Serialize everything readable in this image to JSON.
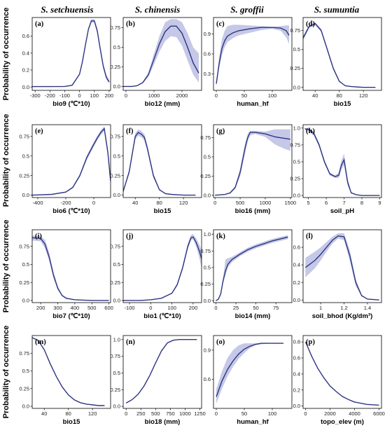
{
  "column_titles": [
    "S. setchuensis",
    "S. chinensis",
    "S. groffii",
    "S. sumuntia"
  ],
  "row_ylabel": "Probability of occurrence",
  "colors": {
    "line": "#2d3582",
    "band": "#c5c8e6"
  },
  "chart_data": [
    {
      "type": "line",
      "label": "(a)",
      "xlabel": "bio9 (℃*10)",
      "xlim": [
        -320,
        210
      ],
      "ylim": [
        -0.04,
        0.82
      ],
      "xticks": [
        -300,
        -200,
        -100,
        0,
        100,
        200
      ],
      "yticks": [
        0.0,
        0.2,
        0.4,
        0.6
      ],
      "x": [
        -320,
        -200,
        -100,
        -50,
        0,
        20,
        40,
        60,
        80,
        100,
        120,
        140,
        160,
        180,
        200
      ],
      "y": [
        0.005,
        0.005,
        0.006,
        0.02,
        0.15,
        0.3,
        0.5,
        0.68,
        0.78,
        0.78,
        0.66,
        0.45,
        0.25,
        0.12,
        0.06
      ],
      "lower": [
        0.005,
        0.005,
        0.006,
        0.02,
        0.14,
        0.28,
        0.48,
        0.66,
        0.76,
        0.76,
        0.63,
        0.42,
        0.22,
        0.09,
        0.04
      ],
      "upper": [
        0.005,
        0.005,
        0.006,
        0.02,
        0.16,
        0.32,
        0.52,
        0.7,
        0.8,
        0.8,
        0.69,
        0.48,
        0.28,
        0.15,
        0.08
      ]
    },
    {
      "type": "line",
      "label": "(e)",
      "xlabel": "bio6 (℃*10)",
      "xlim": [
        -440,
        120
      ],
      "ylim": [
        -0.03,
        0.9
      ],
      "xticks": [
        -400,
        -200,
        0
      ],
      "yticks": [
        0.0,
        0.25,
        0.5,
        0.75
      ],
      "x": [
        -440,
        -300,
        -200,
        -150,
        -100,
        -50,
        0,
        25,
        50,
        75,
        100,
        120
      ],
      "y": [
        0.0,
        0.01,
        0.04,
        0.1,
        0.25,
        0.48,
        0.65,
        0.73,
        0.8,
        0.85,
        0.55,
        0.18
      ],
      "lower": [
        0.0,
        0.01,
        0.035,
        0.09,
        0.23,
        0.45,
        0.62,
        0.7,
        0.77,
        0.82,
        0.5,
        0.15
      ],
      "upper": [
        0.0,
        0.01,
        0.045,
        0.11,
        0.27,
        0.51,
        0.68,
        0.76,
        0.83,
        0.88,
        0.6,
        0.21
      ]
    },
    {
      "type": "line",
      "label": "(i)",
      "xlabel": "bio7 (℃*10)",
      "xlim": [
        150,
        610
      ],
      "ylim": [
        -0.03,
        0.98
      ],
      "xticks": [
        200,
        300,
        400,
        500,
        600
      ],
      "yticks": [
        0.0,
        0.25,
        0.5,
        0.75
      ],
      "x": [
        150,
        200,
        225,
        250,
        275,
        300,
        325,
        350,
        400,
        500,
        600
      ],
      "y": [
        0.87,
        0.86,
        0.78,
        0.6,
        0.35,
        0.17,
        0.07,
        0.03,
        0.01,
        0.0,
        0.0
      ],
      "lower": [
        0.83,
        0.82,
        0.72,
        0.55,
        0.31,
        0.15,
        0.06,
        0.02,
        0.01,
        0.0,
        0.0
      ],
      "upper": [
        0.9,
        0.89,
        0.84,
        0.66,
        0.4,
        0.2,
        0.08,
        0.04,
        0.01,
        0.0,
        0.0
      ]
    },
    {
      "type": "line",
      "label": "(m)",
      "xlabel": "bio15",
      "xlim": [
        20,
        150
      ],
      "ylim": [
        -0.03,
        1.0
      ],
      "xticks": [
        40,
        80,
        120
      ],
      "yticks": [
        0.0,
        0.25,
        0.5,
        0.75
      ],
      "x": [
        20,
        30,
        40,
        50,
        60,
        70,
        80,
        90,
        100,
        110,
        120,
        130,
        140
      ],
      "y": [
        0.97,
        0.93,
        0.8,
        0.6,
        0.42,
        0.27,
        0.16,
        0.09,
        0.05,
        0.03,
        0.02,
        0.01,
        0.01
      ],
      "lower": [
        0.97,
        0.93,
        0.8,
        0.6,
        0.42,
        0.27,
        0.16,
        0.09,
        0.05,
        0.03,
        0.02,
        0.01,
        0.01
      ],
      "upper": [
        0.97,
        0.93,
        0.8,
        0.6,
        0.42,
        0.27,
        0.16,
        0.09,
        0.05,
        0.03,
        0.02,
        0.01,
        0.01
      ]
    },
    {
      "type": "line",
      "label": "(b)",
      "xlabel": "bio12 (mm)",
      "xlim": [
        -100,
        2700
      ],
      "ylim": [
        -0.05,
        0.88
      ],
      "xticks": [
        0,
        1000,
        2000
      ],
      "yticks": [
        0.0,
        0.25,
        0.5,
        0.75
      ],
      "x": [
        -100,
        200,
        400,
        600,
        800,
        1000,
        1200,
        1400,
        1600,
        1800,
        2000,
        2200,
        2400,
        2600
      ],
      "y": [
        0.0,
        0.0,
        0.01,
        0.05,
        0.15,
        0.35,
        0.55,
        0.7,
        0.77,
        0.77,
        0.68,
        0.5,
        0.3,
        0.17
      ],
      "lower": [
        0.0,
        0.0,
        0.01,
        0.04,
        0.12,
        0.28,
        0.45,
        0.58,
        0.64,
        0.63,
        0.52,
        0.33,
        0.15,
        0.05
      ],
      "upper": [
        0.0,
        0.0,
        0.01,
        0.06,
        0.18,
        0.42,
        0.65,
        0.82,
        0.86,
        0.86,
        0.82,
        0.68,
        0.5,
        0.42
      ]
    },
    {
      "type": "line",
      "label": "(f)",
      "xlabel": "bio15",
      "xlim": [
        20,
        150
      ],
      "ylim": [
        -0.03,
        0.9
      ],
      "xticks": [
        40,
        80,
        120
      ],
      "yticks": [
        0.0,
        0.25,
        0.5,
        0.75
      ],
      "x": [
        20,
        30,
        40,
        45,
        50,
        55,
        60,
        70,
        80,
        90,
        100,
        120,
        140
      ],
      "y": [
        0.05,
        0.3,
        0.75,
        0.8,
        0.78,
        0.74,
        0.6,
        0.25,
        0.07,
        0.02,
        0.01,
        0.0,
        0.0
      ],
      "lower": [
        0.04,
        0.27,
        0.71,
        0.76,
        0.74,
        0.7,
        0.56,
        0.22,
        0.06,
        0.02,
        0.01,
        0.0,
        0.0
      ],
      "upper": [
        0.06,
        0.33,
        0.79,
        0.84,
        0.82,
        0.78,
        0.64,
        0.28,
        0.08,
        0.02,
        0.01,
        0.0,
        0.0
      ]
    },
    {
      "type": "line",
      "label": "(j)",
      "xlabel": "bio1 (℃*10)",
      "xlim": [
        -130,
        240
      ],
      "ylim": [
        -0.03,
        0.98
      ],
      "xticks": [
        -100,
        0,
        100,
        200
      ],
      "yticks": [
        0.0,
        0.25,
        0.5,
        0.75
      ],
      "x": [
        -130,
        -50,
        0,
        50,
        100,
        125,
        150,
        175,
        190,
        200,
        215,
        230,
        240
      ],
      "y": [
        0.0,
        0.0,
        0.01,
        0.03,
        0.1,
        0.22,
        0.45,
        0.75,
        0.87,
        0.88,
        0.8,
        0.68,
        0.58
      ],
      "lower": [
        0.0,
        0.0,
        0.01,
        0.03,
        0.09,
        0.2,
        0.42,
        0.71,
        0.83,
        0.85,
        0.74,
        0.58,
        0.45
      ],
      "upper": [
        0.0,
        0.0,
        0.01,
        0.03,
        0.11,
        0.24,
        0.48,
        0.79,
        0.91,
        0.92,
        0.86,
        0.77,
        0.7
      ]
    },
    {
      "type": "line",
      "label": "(n)",
      "xlabel": "bio18 (mm)",
      "xlim": [
        -50,
        1280
      ],
      "ylim": [
        -0.03,
        1.06
      ],
      "xticks": [
        0,
        250,
        500,
        750,
        1000,
        1250
      ],
      "yticks": [
        0.0,
        0.25,
        0.5,
        0.75,
        1.0
      ],
      "x": [
        0,
        100,
        200,
        300,
        400,
        500,
        600,
        700,
        800,
        900,
        1000,
        1100,
        1200
      ],
      "y": [
        0.05,
        0.1,
        0.18,
        0.3,
        0.46,
        0.65,
        0.83,
        0.95,
        0.99,
        1.0,
        1.0,
        1.0,
        1.0
      ],
      "lower": [
        0.05,
        0.1,
        0.18,
        0.3,
        0.46,
        0.65,
        0.83,
        0.95,
        0.99,
        1.0,
        1.0,
        1.0,
        1.0
      ],
      "upper": [
        0.05,
        0.1,
        0.18,
        0.3,
        0.46,
        0.65,
        0.83,
        0.95,
        0.99,
        1.0,
        1.0,
        1.0,
        1.0
      ]
    },
    {
      "type": "line",
      "label": "(c)",
      "xlabel": "human_hf",
      "xlim": [
        -5,
        135
      ],
      "ylim": [
        0.05,
        1.15
      ],
      "xticks": [
        0,
        50,
        100
      ],
      "yticks": [
        0.3,
        0.6,
        0.9
      ],
      "x": [
        0,
        5,
        10,
        15,
        20,
        30,
        40,
        60,
        80,
        100,
        115,
        125,
        130
      ],
      "y": [
        0.15,
        0.45,
        0.68,
        0.8,
        0.87,
        0.92,
        0.95,
        0.98,
        1.0,
        1.0,
        0.99,
        0.95,
        0.88
      ],
      "lower": [
        0.12,
        0.38,
        0.58,
        0.7,
        0.78,
        0.84,
        0.88,
        0.92,
        0.96,
        0.98,
        0.95,
        0.85,
        0.75
      ],
      "upper": [
        0.18,
        0.55,
        0.82,
        0.95,
        1.02,
        1.04,
        1.04,
        1.03,
        1.02,
        1.01,
        1.02,
        1.03,
        1.03
      ]
    },
    {
      "type": "line",
      "label": "(g)",
      "xlabel": "bio16 (mm)",
      "xlim": [
        -30,
        1530
      ],
      "ylim": [
        -0.03,
        0.92
      ],
      "xticks": [
        0,
        500,
        1000,
        1500
      ],
      "yticks": [
        0.0,
        0.25,
        0.5,
        0.75
      ],
      "x": [
        0,
        200,
        300,
        400,
        500,
        600,
        650,
        700,
        800,
        1000,
        1200,
        1400,
        1500
      ],
      "y": [
        0.0,
        0.01,
        0.03,
        0.1,
        0.3,
        0.62,
        0.75,
        0.82,
        0.82,
        0.8,
        0.76,
        0.74,
        0.73
      ],
      "lower": [
        0.0,
        0.01,
        0.02,
        0.08,
        0.25,
        0.55,
        0.7,
        0.78,
        0.8,
        0.76,
        0.66,
        0.6,
        0.58
      ],
      "upper": [
        0.0,
        0.01,
        0.04,
        0.12,
        0.35,
        0.68,
        0.8,
        0.84,
        0.84,
        0.83,
        0.86,
        0.86,
        0.86
      ]
    },
    {
      "type": "line",
      "label": "(k)",
      "xlabel": "bio14 (mm)",
      "xlim": [
        -3,
        95
      ],
      "ylim": [
        -0.03,
        1.07
      ],
      "xticks": [
        0,
        25,
        50,
        75
      ],
      "yticks": [
        0.0,
        0.25,
        0.5,
        0.75,
        1.0
      ],
      "x": [
        0,
        3,
        6,
        9,
        12,
        15,
        20,
        30,
        40,
        50,
        60,
        70,
        80,
        90
      ],
      "y": [
        0.0,
        0.02,
        0.1,
        0.3,
        0.45,
        0.55,
        0.62,
        0.7,
        0.77,
        0.82,
        0.86,
        0.9,
        0.93,
        0.96
      ],
      "lower": [
        0.0,
        0.02,
        0.08,
        0.26,
        0.38,
        0.5,
        0.58,
        0.67,
        0.74,
        0.79,
        0.83,
        0.87,
        0.9,
        0.93
      ],
      "upper": [
        0.0,
        0.02,
        0.12,
        0.34,
        0.62,
        0.64,
        0.66,
        0.73,
        0.8,
        0.85,
        0.89,
        0.93,
        0.96,
        0.99
      ]
    },
    {
      "type": "line",
      "label": "(o)",
      "xlabel": "human_hf",
      "xlim": [
        -5,
        135
      ],
      "ylim": [
        0.3,
        1.05
      ],
      "xticks": [
        0,
        50,
        100
      ],
      "yticks": [
        0.6,
        0.9
      ],
      "x": [
        0,
        10,
        20,
        30,
        40,
        50,
        60,
        70,
        80,
        100,
        120
      ],
      "y": [
        0.42,
        0.58,
        0.7,
        0.79,
        0.86,
        0.91,
        0.94,
        0.96,
        0.97,
        0.97,
        0.97
      ],
      "lower": [
        0.35,
        0.5,
        0.63,
        0.73,
        0.81,
        0.87,
        0.92,
        0.95,
        0.96,
        0.97,
        0.97
      ],
      "upper": [
        0.5,
        0.68,
        0.82,
        0.9,
        0.95,
        0.97,
        0.97,
        0.97,
        0.97,
        0.97,
        0.97
      ]
    },
    {
      "type": "line",
      "label": "(d)",
      "xlabel": "bio15",
      "xlim": [
        20,
        150
      ],
      "ylim": [
        -0.04,
        0.92
      ],
      "xticks": [
        40,
        80,
        120
      ],
      "yticks": [
        0.0,
        0.25,
        0.5,
        0.75
      ],
      "x": [
        20,
        30,
        40,
        50,
        60,
        70,
        80,
        90,
        100,
        120,
        140
      ],
      "y": [
        0.65,
        0.8,
        0.84,
        0.75,
        0.5,
        0.25,
        0.08,
        0.02,
        0.01,
        0.0,
        0.0
      ],
      "lower": [
        0.62,
        0.78,
        0.82,
        0.73,
        0.48,
        0.23,
        0.07,
        0.02,
        0.01,
        0.0,
        0.0
      ],
      "upper": [
        0.68,
        0.82,
        0.86,
        0.77,
        0.52,
        0.27,
        0.09,
        0.02,
        0.01,
        0.0,
        0.0
      ]
    },
    {
      "type": "line",
      "label": "(h)",
      "xlabel": "soil_pH",
      "xlim": [
        4.7,
        9.1
      ],
      "ylim": [
        -0.03,
        1.05
      ],
      "xticks": [
        5,
        6,
        7,
        8,
        9
      ],
      "yticks": [
        0.0,
        0.25,
        0.5,
        0.75,
        1.0
      ],
      "x": [
        4.8,
        5.0,
        5.3,
        5.6,
        5.9,
        6.2,
        6.5,
        6.7,
        6.85,
        7.0,
        7.2,
        7.4,
        7.7,
        8.0,
        8.5,
        9.0
      ],
      "y": [
        0.99,
        0.98,
        0.92,
        0.75,
        0.5,
        0.32,
        0.28,
        0.3,
        0.45,
        0.53,
        0.2,
        0.04,
        0.01,
        0.0,
        0.0,
        0.0
      ],
      "lower": [
        0.97,
        0.96,
        0.89,
        0.72,
        0.47,
        0.3,
        0.26,
        0.26,
        0.38,
        0.45,
        0.15,
        0.03,
        0.01,
        0.0,
        0.0,
        0.0
      ],
      "upper": [
        1.0,
        0.99,
        0.95,
        0.78,
        0.53,
        0.34,
        0.3,
        0.34,
        0.52,
        0.62,
        0.25,
        0.05,
        0.01,
        0.0,
        0.0,
        0.0
      ]
    },
    {
      "type": "line",
      "label": "(l)",
      "xlabel": "soil_bhod (Kg/dm³)",
      "xlim": [
        0.85,
        1.52
      ],
      "ylim": [
        -0.03,
        0.8
      ],
      "xticks": [
        1.0,
        1.2,
        1.4
      ],
      "yticks": [
        0.0,
        0.2,
        0.4,
        0.6
      ],
      "x": [
        0.87,
        0.95,
        1.0,
        1.05,
        1.1,
        1.15,
        1.2,
        1.25,
        1.3,
        1.35,
        1.4,
        1.5
      ],
      "y": [
        0.37,
        0.45,
        0.52,
        0.6,
        0.68,
        0.73,
        0.72,
        0.5,
        0.2,
        0.05,
        0.01,
        0.0
      ],
      "lower": [
        0.26,
        0.36,
        0.45,
        0.55,
        0.64,
        0.7,
        0.68,
        0.44,
        0.16,
        0.04,
        0.01,
        0.0
      ],
      "upper": [
        0.48,
        0.55,
        0.6,
        0.66,
        0.72,
        0.76,
        0.76,
        0.56,
        0.24,
        0.06,
        0.01,
        0.0
      ]
    },
    {
      "type": "line",
      "label": "(p)",
      "xlabel": "topo_elev (m)",
      "xlim": [
        -200,
        6200
      ],
      "ylim": [
        -0.03,
        0.88
      ],
      "xticks": [
        0,
        2000,
        4000,
        6000
      ],
      "yticks": [
        0.0,
        0.2,
        0.4,
        0.6,
        0.8
      ],
      "x": [
        0,
        500,
        1000,
        1500,
        2000,
        2500,
        3000,
        3500,
        4000,
        5000,
        6000
      ],
      "y": [
        0.8,
        0.62,
        0.47,
        0.35,
        0.25,
        0.18,
        0.12,
        0.08,
        0.05,
        0.02,
        0.01
      ],
      "lower": [
        0.8,
        0.62,
        0.47,
        0.35,
        0.25,
        0.18,
        0.12,
        0.08,
        0.05,
        0.02,
        0.01
      ],
      "upper": [
        0.8,
        0.62,
        0.47,
        0.35,
        0.25,
        0.18,
        0.12,
        0.08,
        0.05,
        0.02,
        0.01
      ]
    }
  ]
}
